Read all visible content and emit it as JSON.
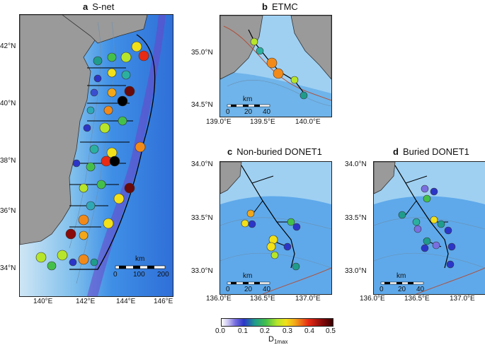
{
  "figure": {
    "colorbar": {
      "ticks": [
        "0.0",
        "0.1",
        "0.2",
        "0.3",
        "0.4",
        "0.5"
      ],
      "label_main": "D",
      "label_sub": "1max"
    },
    "panels": {
      "a": {
        "letter": "a",
        "name": "S-net",
        "lat_ticks": [
          "42°N",
          "40°N",
          "38°N",
          "36°N",
          "34°N"
        ],
        "lon_ticks": [
          "140°E",
          "142°E",
          "144°E",
          "146°E"
        ],
        "scale": {
          "unit": "km",
          "ticks": [
            "0",
            "100",
            "200"
          ]
        }
      },
      "b": {
        "letter": "b",
        "name": "ETMC",
        "lat_ticks": [
          "35.0°N",
          "34.5°N"
        ],
        "lon_ticks": [
          "139.0°E",
          "139.5°E",
          "140.0°E"
        ],
        "scale": {
          "unit": "km",
          "ticks": [
            "0",
            "20",
            "40"
          ]
        }
      },
      "c": {
        "letter": "c",
        "name": "Non-buried DONET1",
        "lat_ticks": [
          "34.0°N",
          "33.5°N",
          "33.0°N"
        ],
        "lon_ticks": [
          "136.0°E",
          "136.5°E",
          "137.0°E"
        ],
        "scale": {
          "unit": "km",
          "ticks": [
            "0",
            "20",
            "40"
          ]
        }
      },
      "d": {
        "letter": "d",
        "name": "Buried DONET1",
        "lat_ticks": [
          "34.0°N",
          "33.5°N",
          "33.0°N"
        ],
        "lon_ticks": [
          "136.0°E",
          "136.5°E",
          "137.0°E"
        ],
        "scale": {
          "unit": "km",
          "ticks": [
            "0",
            "20",
            "40"
          ]
        }
      }
    }
  }
}
